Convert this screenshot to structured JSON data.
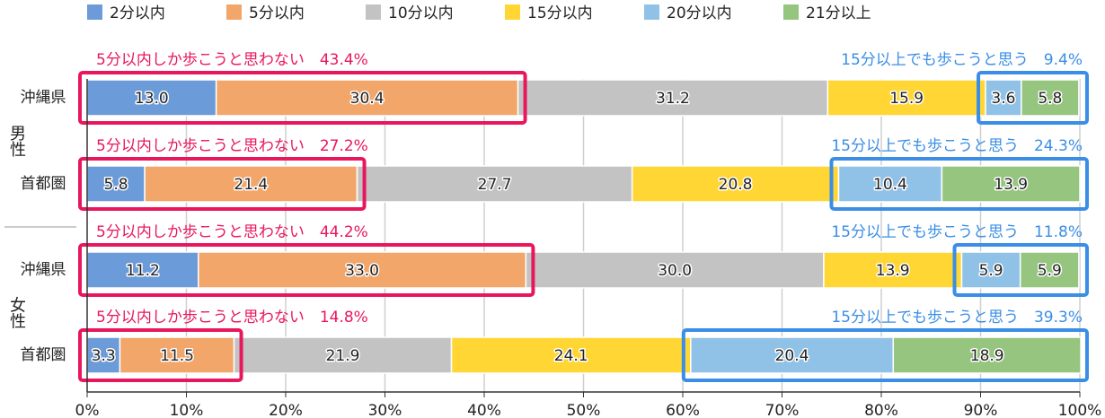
{
  "chart_data": {
    "type": "stacked_barh",
    "groups": [
      "男性",
      "女性"
    ],
    "categories": [
      "沖縄県",
      "首都圏",
      "沖縄県",
      "首都圏"
    ],
    "series": [
      {
        "name": "2分以内",
        "color": "#6b9bd8",
        "values": [
          13.0,
          5.8,
          11.2,
          3.3
        ],
        "value_labels": [
          "13.0",
          "5.8",
          "11.2",
          "3.3"
        ]
      },
      {
        "name": "5分以内",
        "color": "#f2a66a",
        "values": [
          30.4,
          21.4,
          33.0,
          11.5
        ],
        "value_labels": [
          "30.4",
          "21.4",
          "33.0",
          "11.5"
        ]
      },
      {
        "name": "10分以内",
        "color": "#c3c3c3",
        "values": [
          31.2,
          27.7,
          30.0,
          21.9
        ],
        "value_labels": [
          "31.2",
          "27.7",
          "30.0",
          "21.9"
        ]
      },
      {
        "name": "15分以内",
        "color": "#ffd633",
        "values": [
          15.9,
          20.8,
          13.9,
          24.1
        ],
        "value_labels": [
          "15.9",
          "20.8",
          "13.9",
          "24.1"
        ]
      },
      {
        "name": "20分以内",
        "color": "#90c2e8",
        "values": [
          3.6,
          10.4,
          5.9,
          20.4
        ],
        "value_labels": [
          "3.6",
          "10.4",
          "5.9",
          "20.4"
        ]
      },
      {
        "name": "21分以上",
        "color": "#95c57e",
        "values": [
          5.8,
          13.9,
          5.9,
          18.9
        ],
        "value_labels": [
          "5.8",
          "13.9",
          "5.9",
          "18.9"
        ]
      }
    ],
    "annotations": [
      {
        "left": "5分以内しか歩こうと思わない　43.4%",
        "right": "15分以上でも歩こうと思う　9.4%"
      },
      {
        "left": "5分以内しか歩こうと思わない　27.2%",
        "right": "15分以上でも歩こうと思う　24.3%"
      },
      {
        "left": "5分以内しか歩こうと思わない　44.2%",
        "right": "15分以上でも歩こうと思う　11.8%"
      },
      {
        "left": "5分以内しか歩こうと思わない　14.8%",
        "right": "15分以上でも歩こうと思う　39.3%"
      }
    ],
    "xlim": [
      0,
      100
    ],
    "xticks": [
      {
        "value": 0,
        "label": "0%"
      },
      {
        "value": 10,
        "label": "10%"
      },
      {
        "value": 20,
        "label": "20%"
      },
      {
        "value": 30,
        "label": "30%"
      },
      {
        "value": 40,
        "label": "40%"
      },
      {
        "value": 50,
        "label": "50%"
      },
      {
        "value": 60,
        "label": "60%"
      },
      {
        "value": 70,
        "label": "70%"
      },
      {
        "value": 80,
        "label": "80%"
      },
      {
        "value": 90,
        "label": "90%"
      },
      {
        "value": 100,
        "label": "100%"
      }
    ],
    "grid": true
  }
}
